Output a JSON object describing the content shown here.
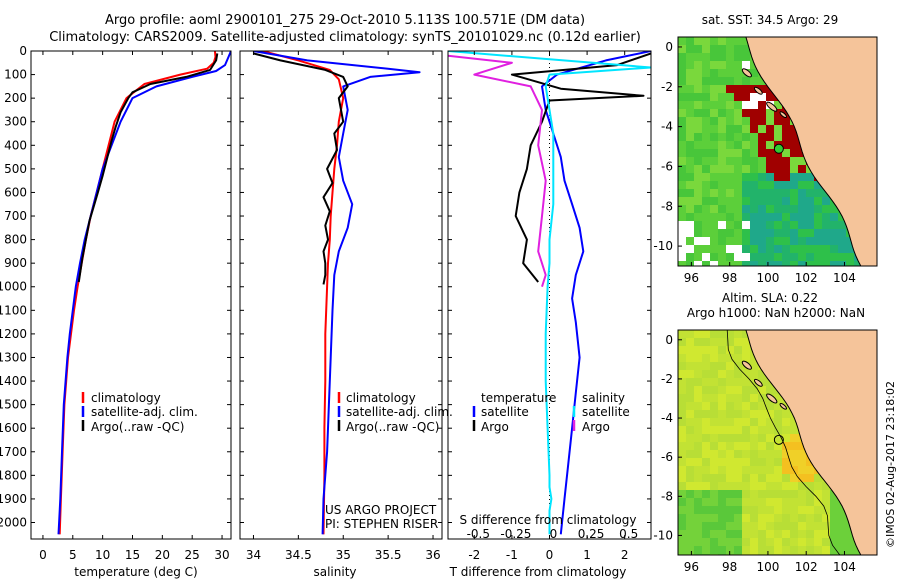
{
  "header": {
    "title_line1": "Argo profile: aoml 2900101_275 29-Oct-2010 5.113S 100.571E (DM data)",
    "title_line2": "Climatology: CARS2009. Satellite-adjusted climatology: synTS_20101029.nc (0.12d earlier)"
  },
  "colors": {
    "climatology": "#ff0000",
    "satellite": "#0000ff",
    "argo": "#000000",
    "sat_diff_s": "#00e5ff",
    "argo_diff_s": "#e020e0",
    "land": "#f5c49a"
  },
  "chart_data": [
    {
      "id": "temperature",
      "type": "line",
      "xlabel": "temperature (deg C)",
      "ylabel": "",
      "xlim": [
        -2,
        31.5
      ],
      "ylim": [
        2070,
        0
      ],
      "xticks": [
        0,
        5,
        10,
        15,
        20,
        25,
        30
      ],
      "yticks": [
        0,
        100,
        200,
        300,
        400,
        500,
        600,
        700,
        800,
        900,
        1000,
        1100,
        1200,
        1300,
        1400,
        1500,
        1600,
        1700,
        1800,
        1900,
        2000
      ],
      "legend": {
        "position": "lower-center",
        "entries": [
          "climatology",
          "satellite-adj. clim.",
          "Argo(..raw -QC)"
        ]
      },
      "series": [
        {
          "name": "climatology",
          "x": [
            28.8,
            28.9,
            28.6,
            27.5,
            23,
            17,
            14,
            12,
            11,
            10,
            9,
            8,
            7.2,
            6.5,
            5.8,
            5.2,
            4.7,
            4.2,
            3.9,
            3.6,
            3.3,
            3.0,
            2.8
          ],
          "y": [
            0,
            25,
            50,
            75,
            100,
            140,
            200,
            300,
            400,
            500,
            600,
            700,
            800,
            900,
            1000,
            1100,
            1200,
            1300,
            1400,
            1500,
            1700,
            1900,
            2050
          ]
        },
        {
          "name": "satellite-adj. clim.",
          "x": [
            31.5,
            31,
            30.5,
            29,
            25,
            19,
            15,
            13,
            11.5,
            10,
            9,
            8,
            7,
            6.2,
            5.5,
            5,
            4.5,
            4.1,
            3.8,
            3.5,
            3.2,
            2.9,
            2.6
          ],
          "y": [
            0,
            30,
            60,
            85,
            110,
            150,
            200,
            300,
            400,
            500,
            600,
            700,
            800,
            900,
            1000,
            1100,
            1200,
            1300,
            1400,
            1500,
            1700,
            1900,
            2050
          ]
        },
        {
          "name": "Argo(..raw -QC)",
          "x": [
            29.2,
            29.0,
            28.0,
            24,
            18,
            15,
            14.3,
            13,
            12.2,
            11.5,
            10.8,
            10,
            9.2,
            8.5,
            7.8,
            7.2,
            6.6,
            6.0
          ],
          "y": [
            10,
            40,
            80,
            110,
            140,
            175,
            200,
            260,
            320,
            380,
            450,
            530,
            600,
            660,
            720,
            800,
            880,
            980
          ]
        }
      ]
    },
    {
      "id": "salinity",
      "type": "line",
      "xlabel": "salinity",
      "xlim": [
        33.85,
        36.1
      ],
      "ylim": [
        2070,
        0
      ],
      "xticks": [
        34,
        34.5,
        35,
        35.5,
        36
      ],
      "legend": {
        "position": "lower-right",
        "entries": [
          "climatology",
          "satellite-adj. clim.",
          "Argo(..raw -QC)"
        ]
      },
      "annotations": [
        "US ARGO PROJECT",
        "PI: STEPHEN RISER"
      ],
      "series": [
        {
          "name": "climatology",
          "x": [
            34.1,
            34.5,
            34.85,
            34.95,
            35.0,
            34.95,
            34.93,
            34.9,
            34.88,
            34.86,
            34.85,
            34.83,
            34.82,
            34.8,
            34.8,
            34.79,
            34.79,
            34.78
          ],
          "y": [
            0,
            40,
            80,
            120,
            200,
            300,
            400,
            500,
            600,
            700,
            800,
            900,
            1000,
            1200,
            1400,
            1600,
            1800,
            2050
          ]
        },
        {
          "name": "satellite-adj. clim.",
          "x": [
            34.0,
            34.6,
            35.5,
            35.85,
            35.3,
            35.0,
            35.05,
            35.0,
            34.95,
            35.0,
            35.1,
            35.05,
            34.95,
            34.9,
            34.88,
            34.86,
            34.84,
            34.82,
            34.8,
            34.78,
            34.77
          ],
          "y": [
            0,
            40,
            75,
            90,
            110,
            150,
            250,
            350,
            450,
            550,
            650,
            750,
            850,
            950,
            1100,
            1300,
            1500,
            1700,
            1800,
            1900,
            2050
          ]
        },
        {
          "name": "Argo(..raw -QC)",
          "x": [
            34.0,
            34.3,
            34.8,
            35.0,
            35.05,
            34.95,
            35.0,
            34.9,
            34.93,
            34.82,
            34.88,
            34.78,
            34.85,
            34.8,
            34.83,
            34.78,
            34.8,
            34.8,
            34.78
          ],
          "y": [
            10,
            40,
            80,
            110,
            150,
            200,
            300,
            350,
            420,
            500,
            560,
            620,
            680,
            740,
            800,
            850,
            900,
            950,
            990
          ]
        }
      ]
    },
    {
      "id": "differences",
      "type": "line",
      "xlabel": "T difference from climatology",
      "xlabel_top": "S difference from climatology",
      "xlim": [
        -2.7,
        2.7
      ],
      "ylim": [
        2070,
        0
      ],
      "xticks": [
        -2,
        -1,
        0,
        1,
        2
      ],
      "xtick_labels_top": [
        "-0.5",
        "-0.25",
        "0",
        "0.25",
        "0.5"
      ],
      "xticks_top": [
        -2,
        -1,
        0,
        1,
        2
      ],
      "legend": {
        "position": "lower-center",
        "left_title": "temperature",
        "right_title": "salinity",
        "entries": [
          "satellite",
          "Argo",
          "satellite",
          "Argo"
        ]
      },
      "series": [
        {
          "name": "temperature satellite",
          "x": [
            2.7,
            1.5,
            0.2,
            -0.2,
            -0.1,
            0.1,
            0.3,
            0.4,
            0.6,
            0.8,
            0.9,
            0.7,
            0.6,
            0.7,
            0.8,
            0.7,
            0.6,
            0.5,
            0.4,
            0.3
          ],
          "y": [
            0,
            40,
            100,
            150,
            250,
            350,
            450,
            550,
            650,
            750,
            850,
            950,
            1050,
            1150,
            1300,
            1450,
            1600,
            1750,
            1900,
            2050
          ]
        },
        {
          "name": "temperature Argo",
          "x": [
            2.7,
            1.8,
            -1.0,
            0.3,
            2.5,
            0.0,
            -0.2,
            -0.5,
            -0.6,
            -0.8,
            -0.9,
            -0.6,
            -0.7,
            -0.3
          ],
          "y": [
            10,
            60,
            100,
            160,
            190,
            210,
            300,
            400,
            500,
            600,
            700,
            800,
            900,
            980
          ]
        },
        {
          "name": "salinity satellite",
          "x": [
            -2.7,
            2.7,
            0.0,
            -0.1,
            0.0,
            0.1,
            0.1,
            0.1,
            0.0,
            0.0,
            -0.05,
            -0.1,
            -0.1,
            -0.05,
            0.0,
            0.0,
            0.05,
            0.0,
            0.0
          ],
          "y": [
            0,
            70,
            100,
            150,
            250,
            350,
            500,
            650,
            800,
            900,
            1000,
            1200,
            1400,
            1600,
            1800,
            1850,
            1900,
            1950,
            2050
          ]
        },
        {
          "name": "salinity Argo",
          "x": [
            -2.7,
            -1.0,
            -2.0,
            -0.5,
            -0.2,
            -0.3,
            -0.1,
            -0.2,
            -0.3,
            -0.1,
            -0.2
          ],
          "y": [
            20,
            50,
            100,
            150,
            250,
            400,
            550,
            700,
            850,
            950,
            1000
          ]
        }
      ]
    },
    {
      "id": "sst_map",
      "type": "heatmap",
      "title": "sat. SST: 34.5 Argo: 29",
      "xlim": [
        95.3,
        105.7
      ],
      "ylim": [
        -11,
        0.5
      ],
      "xticks": [
        96,
        98,
        100,
        102,
        104
      ],
      "yticks": [
        0,
        -2,
        -4,
        -6,
        -8,
        -10
      ],
      "argo_position": [
        100.571,
        -5.113
      ]
    },
    {
      "id": "sla_map",
      "type": "heatmap",
      "title_line1": "Altim. SLA: 0.22",
      "title_line2": "Argo h1000: NaN h2000: NaN",
      "xlim": [
        95.3,
        105.7
      ],
      "ylim": [
        -11,
        0.5
      ],
      "xticks": [
        96,
        98,
        100,
        102,
        104
      ],
      "yticks": [
        0,
        -2,
        -4,
        -6,
        -8,
        -10
      ],
      "argo_position": [
        100.571,
        -5.113
      ]
    }
  ],
  "footer": {
    "credit": "©IMOS 02-Aug-2017 23:18:02"
  }
}
